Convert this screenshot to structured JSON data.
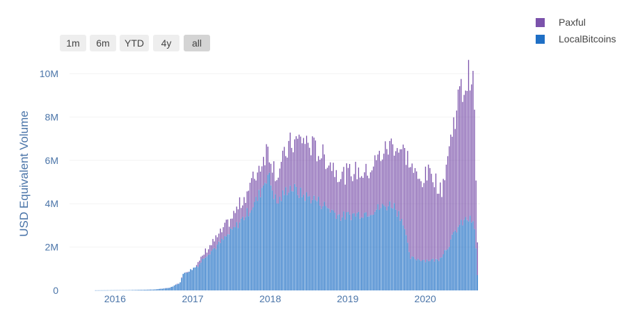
{
  "range_selector": {
    "buttons": [
      {
        "label": "1m",
        "active": false
      },
      {
        "label": "6m",
        "active": false
      },
      {
        "label": "YTD",
        "active": false
      },
      {
        "label": "4y",
        "active": false
      },
      {
        "label": "all",
        "active": true
      }
    ]
  },
  "legend": {
    "items": [
      {
        "label": "Paxful",
        "color": "#7b52ab"
      },
      {
        "label": "LocalBitcoins",
        "color": "#1f6fc5"
      }
    ]
  },
  "colors": {
    "paxful": "#7b52ab",
    "localbitcoins": "#1f6fc5",
    "axis_text": "#4a74a8",
    "grid": "#ffffff"
  },
  "chart_data": {
    "type": "bar",
    "stacked": true,
    "x_unit": "weekly",
    "xlabel": "",
    "ylabel": "USD Equivalent Volume",
    "xlim": [
      "2015-06-01",
      "2020-09-15"
    ],
    "ylim": [
      0,
      10500000
    ],
    "x_ticks": [
      "2016",
      "2017",
      "2018",
      "2019",
      "2020"
    ],
    "y_ticks": [
      "0",
      "2M",
      "4M",
      "6M",
      "8M",
      "10M"
    ],
    "legend_position": "top-right",
    "anchors": {
      "localbitcoins": [
        [
          "2015-10-01",
          5000
        ],
        [
          "2016-03-01",
          15000
        ],
        [
          "2016-07-01",
          40000
        ],
        [
          "2016-09-15",
          120000
        ],
        [
          "2016-11-01",
          350000
        ],
        [
          "2016-11-20",
          800000
        ],
        [
          "2016-12-15",
          900000
        ],
        [
          "2017-02-01",
          1200000
        ],
        [
          "2017-03-01",
          1600000
        ],
        [
          "2017-05-01",
          2100000
        ],
        [
          "2017-07-01",
          2700000
        ],
        [
          "2017-09-01",
          3400000
        ],
        [
          "2017-11-01",
          4200000
        ],
        [
          "2017-12-20",
          5400000
        ],
        [
          "2018-02-01",
          4000000
        ],
        [
          "2018-04-01",
          4800000
        ],
        [
          "2018-06-01",
          4400000
        ],
        [
          "2018-08-01",
          4200000
        ],
        [
          "2018-10-01",
          3800000
        ],
        [
          "2018-12-01",
          3400000
        ],
        [
          "2019-02-01",
          3500000
        ],
        [
          "2019-04-01",
          3600000
        ],
        [
          "2019-06-01",
          3800000
        ],
        [
          "2019-08-01",
          4000000
        ],
        [
          "2019-09-20",
          3200000
        ],
        [
          "2019-10-20",
          1500000
        ],
        [
          "2020-01-01",
          1400000
        ],
        [
          "2020-03-01",
          1400000
        ],
        [
          "2020-04-15",
          2000000
        ],
        [
          "2020-06-01",
          2900000
        ],
        [
          "2020-07-15",
          3300000
        ],
        [
          "2020-08-10",
          3200000
        ],
        [
          "2020-08-25",
          2500000
        ],
        [
          "2020-09-01",
          700000
        ]
      ],
      "paxful_total": [
        [
          "2015-10-01",
          5000
        ],
        [
          "2016-03-01",
          15000
        ],
        [
          "2016-07-01",
          40000
        ],
        [
          "2016-09-15",
          120000
        ],
        [
          "2016-11-01",
          350000
        ],
        [
          "2016-11-20",
          800000
        ],
        [
          "2016-12-15",
          900000
        ],
        [
          "2017-02-01",
          1300000
        ],
        [
          "2017-03-01",
          1800000
        ],
        [
          "2017-05-01",
          2500000
        ],
        [
          "2017-07-01",
          3300000
        ],
        [
          "2017-09-01",
          4300000
        ],
        [
          "2017-11-01",
          5500000
        ],
        [
          "2017-12-20",
          6600000
        ],
        [
          "2018-02-01",
          5300000
        ],
        [
          "2018-04-01",
          6700000
        ],
        [
          "2018-06-01",
          7000000
        ],
        [
          "2018-08-01",
          6500000
        ],
        [
          "2018-10-01",
          6000000
        ],
        [
          "2018-12-01",
          5300000
        ],
        [
          "2019-02-01",
          5500000
        ],
        [
          "2019-04-01",
          5400000
        ],
        [
          "2019-06-01",
          6200000
        ],
        [
          "2019-08-01",
          6800000
        ],
        [
          "2019-10-01",
          6300000
        ],
        [
          "2019-12-01",
          5000000
        ],
        [
          "2020-02-01",
          5500000
        ],
        [
          "2020-03-15",
          4500000
        ],
        [
          "2020-05-01",
          7000000
        ],
        [
          "2020-06-01",
          8800000
        ],
        [
          "2020-07-15",
          9600000
        ],
        [
          "2020-08-01",
          10200000
        ],
        [
          "2020-08-20",
          8800000
        ],
        [
          "2020-09-01",
          2100000
        ]
      ]
    }
  }
}
